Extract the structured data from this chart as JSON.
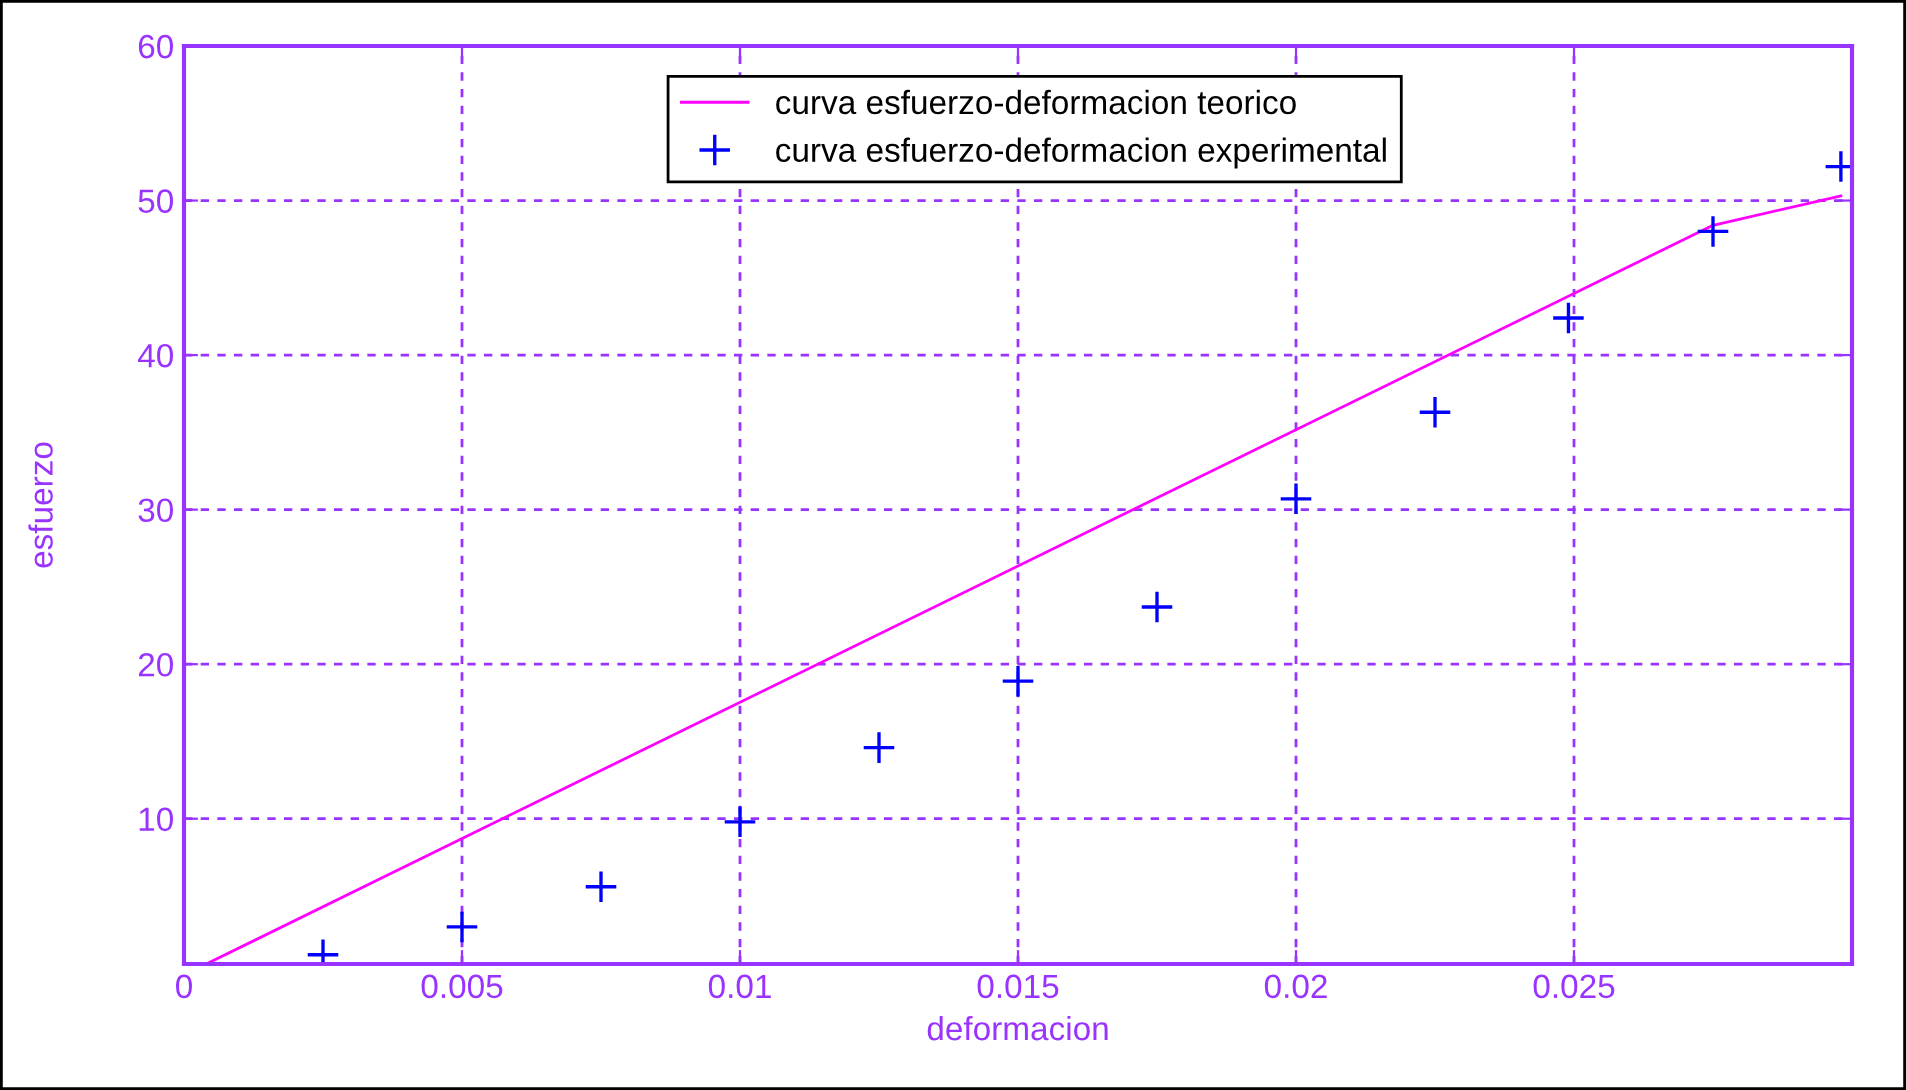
{
  "chart_data": {
    "type": "line",
    "xlabel": "deformacion",
    "ylabel": "esfuerzo",
    "series": [
      {
        "name": "curva esfuerzo-deformacion teorico",
        "color": "#ff00ff",
        "marker": "none",
        "line_style": "solid",
        "x": [
          0.0004,
          0.0275,
          0.0298
        ],
        "values": [
          0.6,
          48.4,
          50.3
        ]
      },
      {
        "name": "curva esfuerzo-deformacion experimental",
        "type": "scatter",
        "color": "#0000ff",
        "marker": "cross",
        "x": [
          0.0025,
          0.005,
          0.0075,
          0.01,
          0.0125,
          0.015,
          0.0175,
          0.02,
          0.0225,
          0.0249,
          0.0275,
          0.0298
        ],
        "values": [
          1.2,
          3.0,
          5.6,
          9.8,
          14.6,
          18.9,
          23.7,
          30.7,
          36.3,
          42.4,
          48.0,
          52.2
        ]
      }
    ],
    "xlim": [
      0,
      0.03
    ],
    "ylim": [
      0.6,
      60
    ],
    "xticks": [
      0,
      0.005,
      0.01,
      0.015,
      0.02,
      0.025
    ],
    "yticks": [
      10,
      20,
      30,
      40,
      50,
      60
    ],
    "grid": true,
    "legend": "top"
  }
}
